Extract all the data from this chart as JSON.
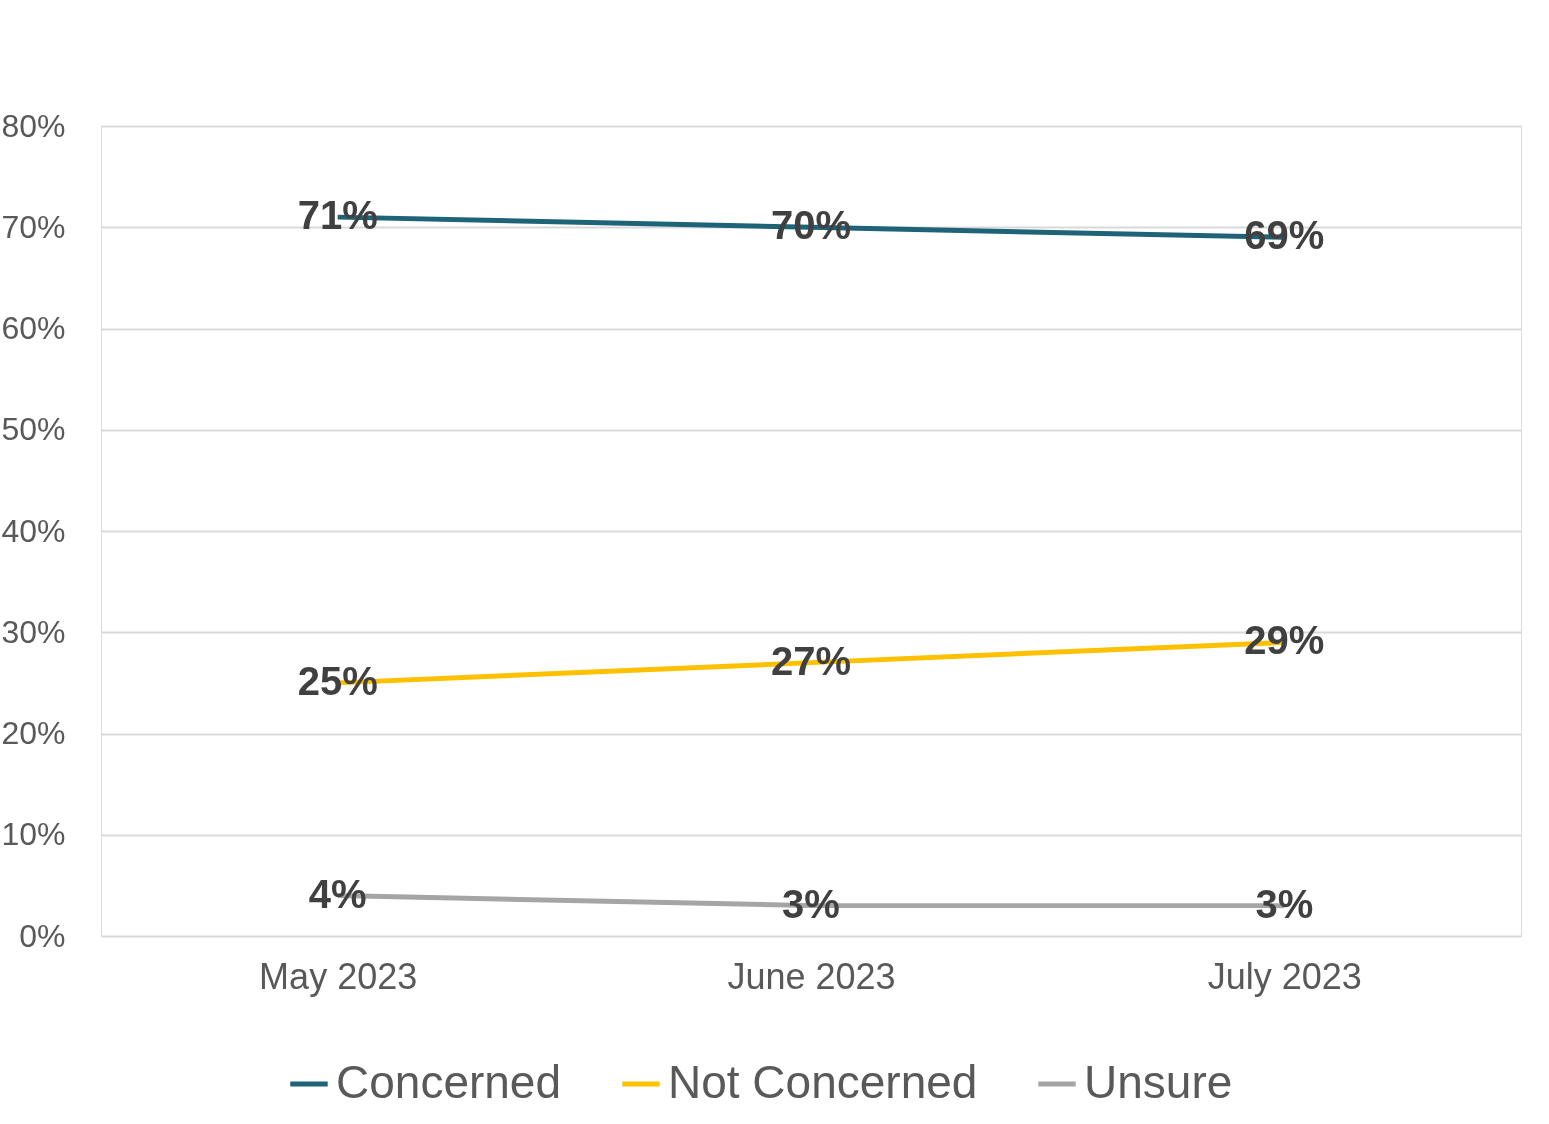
{
  "chart_data": {
    "type": "line",
    "categories": [
      "May 2023",
      "June 2023",
      "July 2023"
    ],
    "series": [
      {
        "name": "Concerned",
        "color": "#1f6378",
        "values": [
          71,
          70,
          69
        ],
        "value_labels": [
          "71%",
          "70%",
          "69%"
        ]
      },
      {
        "name": "Not Concerned",
        "color": "#ffc000",
        "values": [
          25,
          27,
          29
        ],
        "value_labels": [
          "25%",
          "27%",
          "29%"
        ]
      },
      {
        "name": "Unsure",
        "color": "#a5a5a5",
        "values": [
          4,
          3,
          3
        ],
        "value_labels": [
          "4%",
          "3%",
          "3%"
        ]
      }
    ],
    "ylim": [
      0,
      80
    ],
    "yticks": [
      {
        "value": 0,
        "label": "0%"
      },
      {
        "value": 10,
        "label": "10%"
      },
      {
        "value": 20,
        "label": "20%"
      },
      {
        "value": 30,
        "label": "30%"
      },
      {
        "value": 40,
        "label": "40%"
      },
      {
        "value": 50,
        "label": "50%"
      },
      {
        "value": 60,
        "label": "60%"
      },
      {
        "value": 70,
        "label": "70%"
      },
      {
        "value": 80,
        "label": "80%"
      }
    ],
    "grid": "y",
    "legend": "bottom",
    "marker": "none",
    "line_style": "solid"
  }
}
